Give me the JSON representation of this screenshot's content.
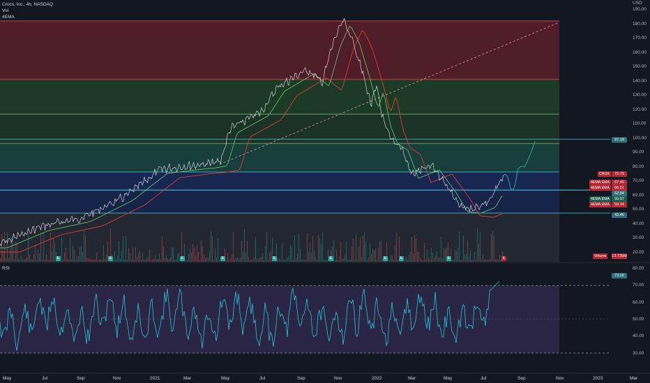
{
  "legend": {
    "symbol_line": "Crocs, Inc., 4h, NASDAQ",
    "vol_label": "Vol",
    "ema_label": "4EMA"
  },
  "price_axis": {
    "currency": "USD",
    "ticks": [
      "190.00",
      "180.00",
      "170.00",
      "160.00",
      "150.00",
      "140.00",
      "130.00",
      "120.00",
      "110.00",
      "100.00",
      "90.00",
      "80.00",
      "70.00",
      "60.00",
      "50.00",
      "40.00",
      "30.00",
      "20.00"
    ],
    "tags": [
      {
        "name": "target-level",
        "text": "97.18",
        "color": "#2f6f79"
      },
      {
        "name": "crox-last",
        "text": "72.75",
        "color": "#b22833"
      },
      {
        "name": "ema-1",
        "text": "67.40",
        "color": "#b22833"
      },
      {
        "name": "ema-2",
        "text": "66.01",
        "color": "#b22833"
      },
      {
        "name": "current-level",
        "text": "62.84",
        "color": "#2f6f79"
      },
      {
        "name": "ema-3",
        "text": "59.57",
        "color": "#1f5e4e"
      },
      {
        "name": "ema-4",
        "text": "59.24",
        "color": "#b22833"
      },
      {
        "name": "support-level",
        "text": "43.46",
        "color": "#2f6f79"
      },
      {
        "name": "volume-value",
        "text": "13.735M",
        "color": "#b22833"
      }
    ]
  },
  "series_labels": [
    {
      "name": "crox-label",
      "text": "CROX",
      "color": "#b22833"
    },
    {
      "name": "ema-label-1",
      "text": "4EMA:EMA",
      "color": "#b22833"
    },
    {
      "name": "ema-label-2",
      "text": "4EMA:EMA",
      "color": "#b22833"
    },
    {
      "name": "ema-label-3",
      "text": "4EMA:EMA",
      "color": "#1f5e4e"
    },
    {
      "name": "ema-label-4",
      "text": "4EMA:EMA",
      "color": "#b22833"
    },
    {
      "name": "volume-label",
      "text": "Volume",
      "color": "#b22833"
    }
  ],
  "rsi": {
    "label": "RSI",
    "ticks": [
      "80.00",
      "70.00",
      "60.00",
      "50.00",
      "40.00",
      "30.00"
    ],
    "tag": "73.26"
  },
  "time_axis": [
    "May",
    "Jul",
    "Sep",
    "Nov",
    "2021",
    "Mar",
    "May",
    "Jul",
    "Sep",
    "Nov",
    "2022",
    "Mar",
    "May",
    "Jul",
    "Sep",
    "Nov",
    "2023",
    "Mar"
  ],
  "earnings_marker": "E",
  "colors": {
    "background": "#131722",
    "red_zone": "#b22833",
    "green_zone": "#2e7d32",
    "teal_zone": "#1d6f5a",
    "blue_zone": "#2962ff",
    "price_line": "#c8c8c8",
    "ema_red": "#e53935",
    "ema_green": "#43a047",
    "projection": "#26a69a",
    "rsi_line": "#26c6da",
    "rsi_band": "#7e57c2"
  }
}
